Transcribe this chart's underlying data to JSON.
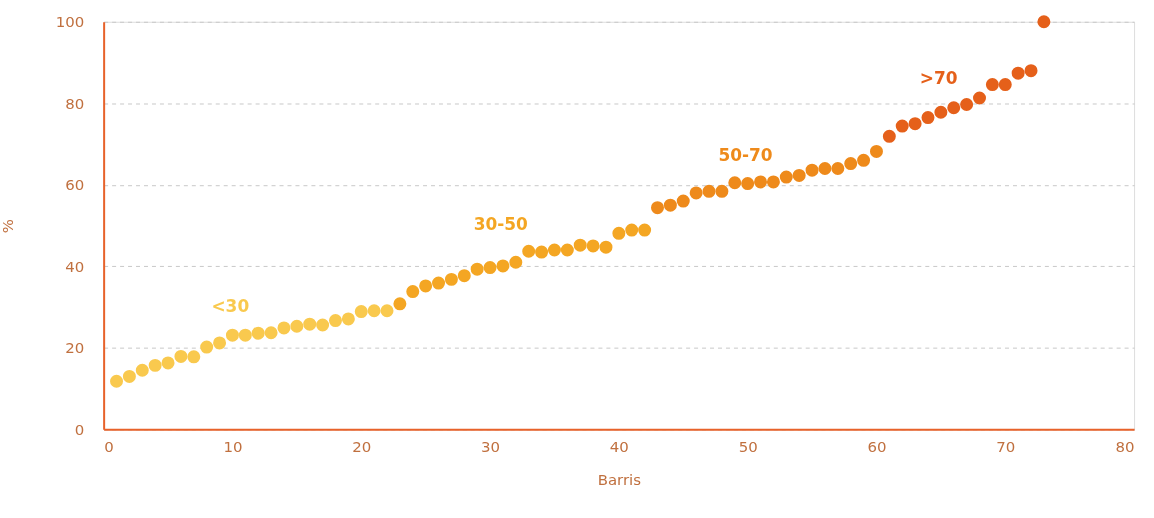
{
  "chart_data": {
    "type": "scatter",
    "xlabel": "Barris",
    "ylabel": "%",
    "xlim": [
      0,
      80
    ],
    "xticks": [
      0,
      10,
      20,
      30,
      40,
      50,
      60,
      70,
      80
    ],
    "ylim": [
      0,
      100
    ],
    "yticks": [
      0,
      20,
      40,
      60,
      80,
      100
    ],
    "grid": "y",
    "marker": "circle",
    "legend": false,
    "series": [
      {
        "name": "<30",
        "color": "#f9c94e",
        "x": [
          1,
          2,
          3,
          4,
          5,
          6,
          7,
          8,
          9,
          10,
          11,
          12,
          13,
          14,
          15,
          16,
          17,
          18,
          19,
          20,
          21,
          22
        ],
        "values": [
          11.8,
          13.0,
          14.5,
          15.7,
          16.3,
          17.9,
          17.8,
          20.2,
          21.2,
          23.1,
          23.1,
          23.6,
          23.7,
          24.9,
          25.3,
          25.8,
          25.6,
          26.7,
          27.1,
          28.9,
          29.1,
          29.1
        ]
      },
      {
        "name": "30-50",
        "color": "#f4a623",
        "x": [
          23,
          24,
          25,
          26,
          27,
          28,
          29,
          30,
          31,
          32,
          33,
          34,
          35,
          36,
          37,
          38,
          39,
          40,
          41,
          42
        ],
        "values": [
          30.8,
          33.8,
          35.2,
          35.9,
          36.8,
          37.7,
          39.3,
          39.7,
          40.1,
          41.0,
          43.7,
          43.5,
          44.0,
          44.0,
          45.2,
          45.0,
          44.7,
          48.1,
          48.9,
          48.9
        ]
      },
      {
        "name": "50-70",
        "color": "#ee8a1b",
        "x": [
          43,
          44,
          45,
          46,
          47,
          48,
          49,
          50,
          51,
          52,
          53,
          54,
          55,
          56,
          57,
          58,
          59,
          60
        ],
        "values": [
          54.4,
          55.0,
          56.0,
          58.0,
          58.4,
          58.4,
          60.5,
          60.3,
          60.7,
          60.7,
          61.9,
          62.3,
          63.6,
          64.0,
          64.0,
          65.2,
          66.0,
          68.2
        ]
      },
      {
        "name": ">70",
        "color": "#e5601a",
        "x": [
          61,
          62,
          63,
          64,
          65,
          66,
          67,
          68,
          69,
          70,
          71,
          72,
          73
        ],
        "values": [
          71.9,
          74.4,
          75.0,
          76.5,
          77.8,
          78.9,
          79.7,
          81.3,
          84.6,
          84.6,
          87.4,
          88.0,
          100
        ]
      }
    ]
  }
}
